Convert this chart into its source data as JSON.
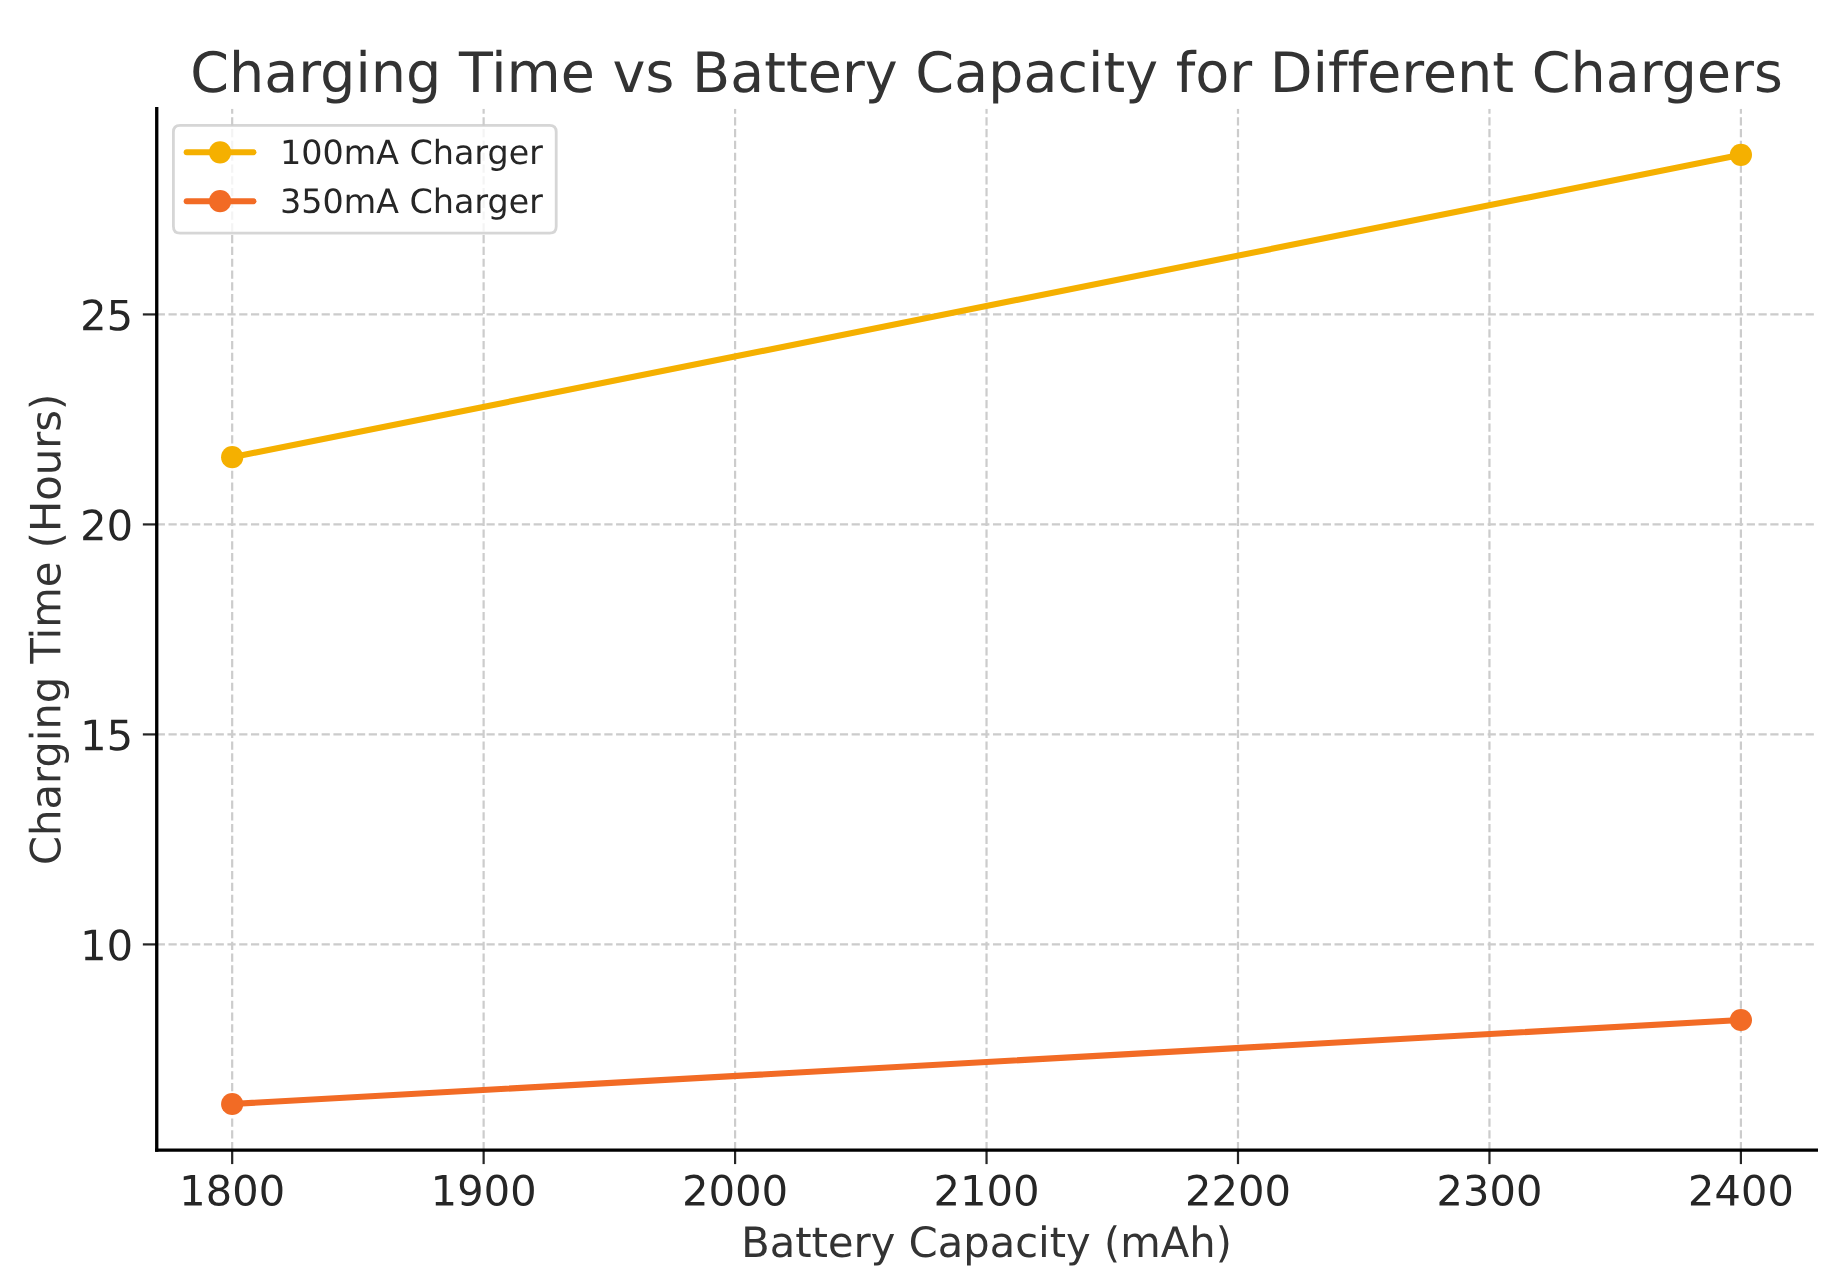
{
  "chart_data": {
    "type": "line",
    "title": "Charging Time vs Battery Capacity for Different Chargers",
    "xlabel": "Battery Capacity (mAh)",
    "ylabel": "Charging Time (Hours)",
    "x": [
      1800,
      2400
    ],
    "series": [
      {
        "name": "100mA Charger",
        "color": "#f5b000",
        "values": [
          21.6,
          28.8
        ]
      },
      {
        "name": "350mA Charger",
        "color": "#f26b25",
        "values": [
          6.2,
          8.2
        ]
      }
    ],
    "xlim": [
      1770,
      2430
    ],
    "xticks": [
      1800,
      1900,
      2000,
      2100,
      2200,
      2300,
      2400
    ],
    "ylim": [
      5.1,
      29.9
    ],
    "yticks": [
      10,
      15,
      20,
      25
    ],
    "grid": true,
    "legend": "top left",
    "marker": "circle",
    "line_style": "solid"
  }
}
